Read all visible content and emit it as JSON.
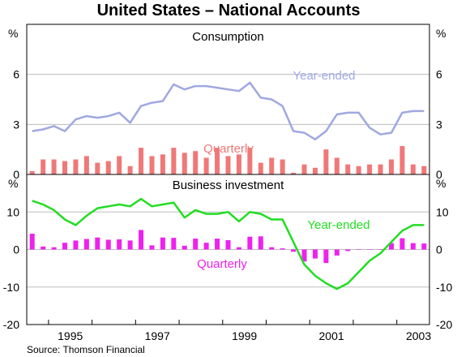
{
  "title": "United States – National Accounts",
  "source": "Source: Thomson Financial",
  "chart_data": [
    {
      "type": "bar+line",
      "title": "Consumption",
      "unit": "%",
      "ylim": [
        0,
        9
      ],
      "yticks": [
        0,
        3,
        6
      ],
      "xlim": [
        1994.5,
        2003.75
      ],
      "xticks": [
        "1995",
        "1997",
        "1999",
        "2001",
        "2003"
      ],
      "grid": "horizontal",
      "series": [
        {
          "name": "Year-ended",
          "type": "line",
          "color": "#a0a8e0",
          "x": [
            1994.625,
            1994.875,
            1995.125,
            1995.375,
            1995.625,
            1995.875,
            1996.125,
            1996.375,
            1996.625,
            1996.875,
            1997.125,
            1997.375,
            1997.625,
            1997.875,
            1998.125,
            1998.375,
            1998.625,
            1998.875,
            1999.125,
            1999.375,
            1999.625,
            1999.875,
            2000.125,
            2000.375,
            2000.625,
            2000.875,
            2001.125,
            2001.375,
            2001.625,
            2001.875,
            2002.125,
            2002.375,
            2002.625,
            2002.875,
            2003.125,
            2003.375,
            2003.625
          ],
          "y": [
            2.6,
            2.7,
            2.9,
            2.6,
            3.3,
            3.5,
            3.4,
            3.5,
            3.7,
            3.1,
            4.1,
            4.3,
            4.4,
            5.4,
            5.1,
            5.3,
            5.3,
            5.2,
            5.1,
            5.0,
            5.5,
            4.6,
            4.5,
            4.1,
            2.6,
            2.5,
            2.1,
            2.6,
            3.6,
            3.7,
            3.7,
            2.8,
            2.4,
            2.5,
            3.7,
            3.8,
            3.8
          ]
        },
        {
          "name": "Quarterly",
          "type": "bar",
          "color": "#f07878",
          "x": [
            1994.625,
            1994.875,
            1995.125,
            1995.375,
            1995.625,
            1995.875,
            1996.125,
            1996.375,
            1996.625,
            1996.875,
            1997.125,
            1997.375,
            1997.625,
            1997.875,
            1998.125,
            1998.375,
            1998.625,
            1998.875,
            1999.125,
            1999.375,
            1999.625,
            1999.875,
            2000.125,
            2000.375,
            2000.625,
            2000.875,
            2001.125,
            2001.375,
            2001.625,
            2001.875,
            2002.125,
            2002.375,
            2002.625,
            2002.875,
            2003.125,
            2003.375,
            2003.625
          ],
          "y": [
            0.2,
            0.9,
            0.9,
            0.8,
            0.9,
            1.1,
            0.7,
            0.8,
            1.1,
            0.5,
            1.6,
            1.1,
            1.2,
            1.6,
            1.3,
            1.4,
            1.0,
            1.6,
            1.1,
            1.2,
            1.6,
            0.7,
            1.0,
            0.9,
            0.1,
            0.6,
            0.4,
            1.5,
            1.0,
            0.6,
            0.5,
            0.6,
            0.6,
            0.9,
            1.7,
            0.6,
            0.5
          ]
        }
      ],
      "annotations": [
        "Year-ended",
        "Quarterly"
      ]
    },
    {
      "type": "bar+line",
      "title": "Business investment",
      "unit": "%",
      "ylim": [
        -20,
        20
      ],
      "yticks": [
        -20,
        -10,
        0,
        10
      ],
      "xlim": [
        1994.5,
        2003.75
      ],
      "xticks": [
        "1995",
        "1997",
        "1999",
        "2001",
        "2003"
      ],
      "grid": "horizontal",
      "series": [
        {
          "name": "Year-ended",
          "type": "line",
          "color": "#22dd22",
          "x": [
            1994.625,
            1994.875,
            1995.125,
            1995.375,
            1995.625,
            1995.875,
            1996.125,
            1996.375,
            1996.625,
            1996.875,
            1997.125,
            1997.375,
            1997.625,
            1997.875,
            1998.125,
            1998.375,
            1998.625,
            1998.875,
            1999.125,
            1999.375,
            1999.625,
            1999.875,
            2000.125,
            2000.375,
            2000.625,
            2000.875,
            2001.125,
            2001.375,
            2001.625,
            2001.875,
            2002.125,
            2002.375,
            2002.625,
            2002.875,
            2003.125,
            2003.375,
            2003.625
          ],
          "y": [
            13,
            12,
            10.5,
            8,
            6.5,
            9,
            11,
            11.5,
            12,
            11.5,
            13.5,
            11.5,
            12,
            12.5,
            8.5,
            10.5,
            9.5,
            9.5,
            10,
            7.5,
            10,
            9.5,
            8,
            8,
            2,
            -4,
            -7,
            -9,
            -10.5,
            -9,
            -6,
            -3,
            -1,
            2,
            5,
            6.5,
            6.5
          ]
        },
        {
          "name": "Quarterly",
          "type": "bar",
          "color": "#ee22ee",
          "x": [
            1994.625,
            1994.875,
            1995.125,
            1995.375,
            1995.625,
            1995.875,
            1996.125,
            1996.375,
            1996.625,
            1996.875,
            1997.125,
            1997.375,
            1997.625,
            1997.875,
            1998.125,
            1998.375,
            1998.625,
            1998.875,
            1999.125,
            1999.375,
            1999.625,
            1999.875,
            2000.125,
            2000.375,
            2000.625,
            2000.875,
            2001.125,
            2001.375,
            2001.625,
            2001.875,
            2002.125,
            2002.375,
            2002.625,
            2002.875,
            2003.125,
            2003.375,
            2003.625
          ],
          "y": [
            4.2,
            0.8,
            0.6,
            1.8,
            2.4,
            2.8,
            3.2,
            2.6,
            2.7,
            2.4,
            5.2,
            1.1,
            3.2,
            3.1,
            1.0,
            2.9,
            1.8,
            2.9,
            2.5,
            0.6,
            3.4,
            3.5,
            0.6,
            0.3,
            -0.6,
            -3.2,
            -2.4,
            -3.6,
            -1.6,
            -0.4,
            0.0,
            0.0,
            0.1,
            1.7,
            3.0,
            1.7,
            1.6
          ]
        }
      ],
      "annotations": [
        "Year-ended",
        "Quarterly"
      ]
    }
  ]
}
